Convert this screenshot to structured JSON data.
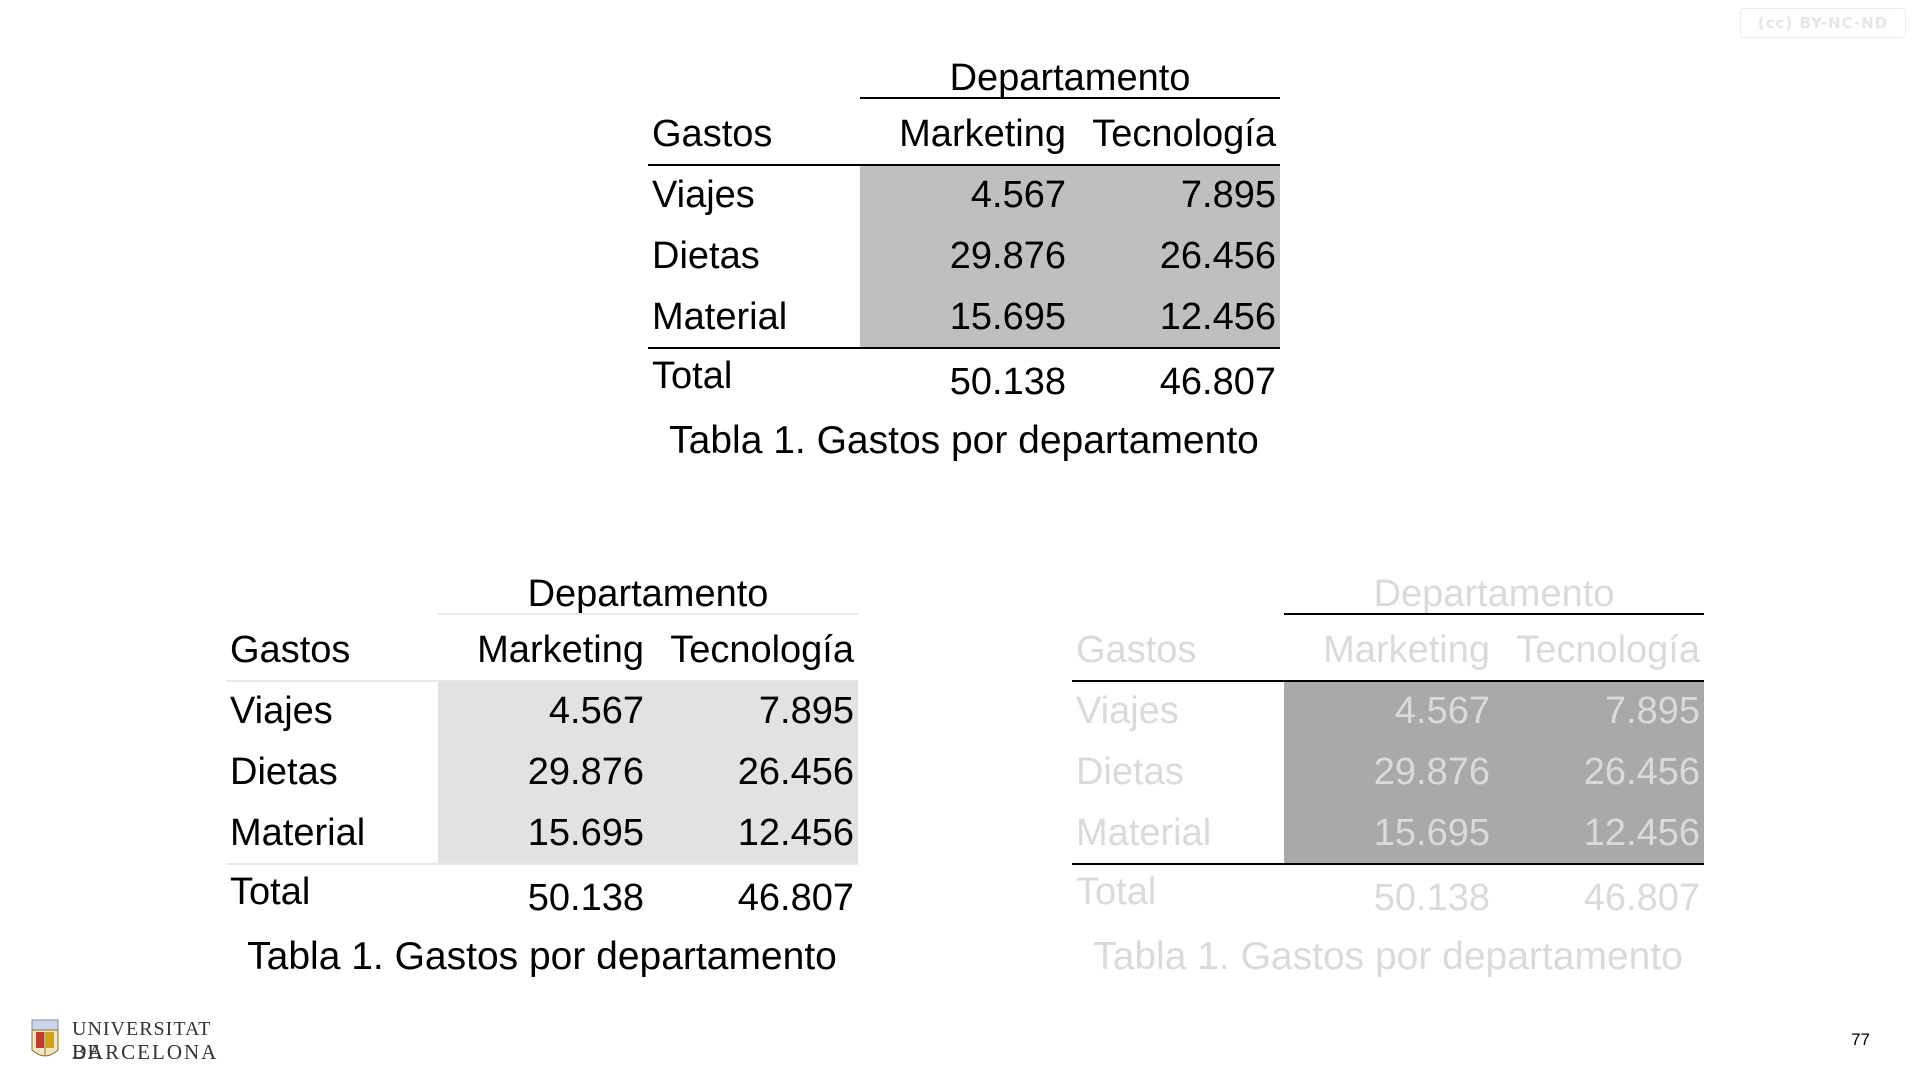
{
  "license_badge": "(cc) BY-NC-ND",
  "tables": [
    {
      "dept_header": "Departamento",
      "row_header": "Gastos",
      "columns": [
        "Marketing",
        "Tecnología"
      ],
      "rows": [
        {
          "label": "Viajes",
          "values": [
            "4.567",
            "7.895"
          ]
        },
        {
          "label": "Dietas",
          "values": [
            "29.876",
            "26.456"
          ]
        },
        {
          "label": "Material",
          "values": [
            "15.695",
            "12.456"
          ]
        }
      ],
      "total": {
        "label": "Total",
        "values": [
          "50.138",
          "46.807"
        ]
      },
      "caption": "Tabla 1. Gastos por departamento",
      "style": {
        "shade": "#bfbfbf",
        "rule": "#000000"
      }
    },
    {
      "dept_header": "Departamento",
      "row_header": "Gastos",
      "columns": [
        "Marketing",
        "Tecnología"
      ],
      "rows": [
        {
          "label": "Viajes",
          "values": [
            "4.567",
            "7.895"
          ]
        },
        {
          "label": "Dietas",
          "values": [
            "29.876",
            "26.456"
          ]
        },
        {
          "label": "Material",
          "values": [
            "15.695",
            "12.456"
          ]
        }
      ],
      "total": {
        "label": "Total",
        "values": [
          "50.138",
          "46.807"
        ]
      },
      "caption": "Tabla 1. Gastos por departamento",
      "style": {
        "shade": "#e2e2e2",
        "rule": "#e8e8e8"
      }
    },
    {
      "dept_header": "Departamento",
      "row_header": "Gastos",
      "columns": [
        "Marketing",
        "Tecnología"
      ],
      "rows": [
        {
          "label": "Viajes",
          "values": [
            "4.567",
            "7.895"
          ]
        },
        {
          "label": "Dietas",
          "values": [
            "29.876",
            "26.456"
          ]
        },
        {
          "label": "Material",
          "values": [
            "15.695",
            "12.456"
          ]
        }
      ],
      "total": {
        "label": "Total",
        "values": [
          "50.138",
          "46.807"
        ]
      },
      "caption": "Tabla 1. Gastos por departamento",
      "style": {
        "shade": "#a9a9a9",
        "rule": "#000000"
      }
    }
  ],
  "logo": {
    "line1": "UNIVERSITAT DE",
    "line2": "BARCELONA"
  },
  "page_number": "77"
}
